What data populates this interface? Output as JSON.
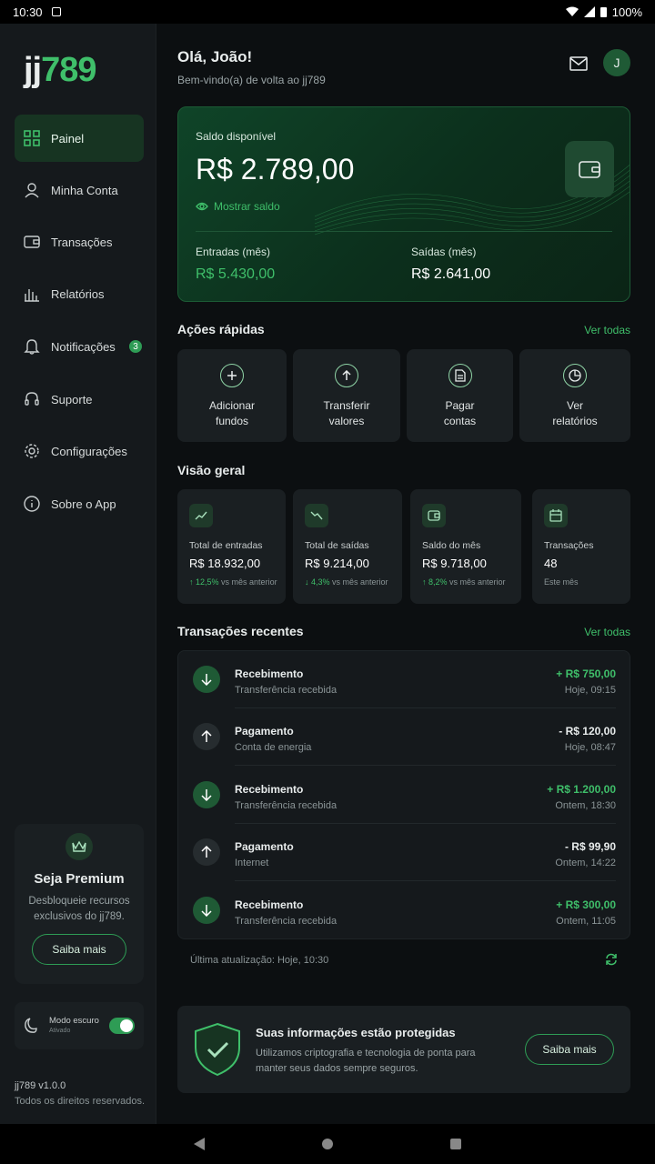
{
  "status": {
    "time": "10:30",
    "battery": "100%"
  },
  "sidebar": {
    "logo_a": "jj",
    "logo_b": "789",
    "items": [
      {
        "label": "Painel"
      },
      {
        "label": "Minha Conta"
      },
      {
        "label": "Transações"
      },
      {
        "label": "Relatórios"
      },
      {
        "label": "Notificações",
        "badge": "3"
      },
      {
        "label": "Suporte"
      },
      {
        "label": "Configurações"
      },
      {
        "label": "Sobre o App"
      }
    ],
    "premium": {
      "title": "Seja Premium",
      "text": "Desbloqueie recursos exclusivos do jj789.",
      "button": "Saiba mais"
    },
    "dark_mode": {
      "label": "Modo escuro",
      "sub": "Ativado",
      "on": true
    },
    "version": "jj789 v1.0.0",
    "rights": "Todos os direitos reservados."
  },
  "header": {
    "greeting": "Olá, João!",
    "subtitle": "Bem-vindo(a) de volta ao jj789",
    "avatar_letter": "J"
  },
  "balance": {
    "label": "Saldo disponível",
    "amount": "R$ 2.789,00",
    "show_label": "Mostrar saldo",
    "in_label": "Entradas (mês)",
    "in_value": "R$ 5.430,00",
    "out_label": "Saídas (mês)",
    "out_value": "R$ 2.641,00"
  },
  "quick_actions": {
    "title": "Ações rápidas",
    "see_all": "Ver todas",
    "items": [
      {
        "line1": "Adicionar",
        "line2": "fundos"
      },
      {
        "line1": "Transferir",
        "line2": "valores"
      },
      {
        "line1": "Pagar",
        "line2": "contas"
      },
      {
        "line1": "Ver",
        "line2": "relatórios"
      }
    ]
  },
  "overview": {
    "title": "Visão geral",
    "items": [
      {
        "label": "Total de entradas",
        "value": "R$ 18.932,00",
        "change": "↑ 12,5%",
        "note": "vs mês anterior"
      },
      {
        "label": "Total de saídas",
        "value": "R$ 9.214,00",
        "change": "↓ 4,3%",
        "note": "vs mês anterior"
      },
      {
        "label": "Saldo do mês",
        "value": "R$ 9.718,00",
        "change": "↑ 8,2%",
        "note": "vs mês anterior"
      },
      {
        "label": "Transações",
        "value": "48",
        "change": "",
        "note": "Este mês"
      }
    ]
  },
  "transactions": {
    "title": "Transações recentes",
    "see_all": "Ver todas",
    "rows": [
      {
        "name": "Recebimento",
        "desc": "Transferência recebida",
        "amount": "+ R$ 750,00",
        "time": "Hoje, 09:15",
        "type": "in"
      },
      {
        "name": "Pagamento",
        "desc": "Conta de energia",
        "amount": "- R$ 120,00",
        "time": "Hoje, 08:47",
        "type": "out"
      },
      {
        "name": "Recebimento",
        "desc": "Transferência recebida",
        "amount": "+ R$ 1.200,00",
        "time": "Ontem, 18:30",
        "type": "in"
      },
      {
        "name": "Pagamento",
        "desc": "Internet",
        "amount": "- R$ 99,90",
        "time": "Ontem, 14:22",
        "type": "out"
      },
      {
        "name": "Recebimento",
        "desc": "Transferência recebida",
        "amount": "+ R$ 300,00",
        "time": "Ontem, 11:05",
        "type": "in"
      }
    ],
    "updated": "Última atualização: Hoje, 10:30"
  },
  "security": {
    "title": "Suas informações estão protegidas",
    "text": "Utilizamos criptografia e tecnologia de ponta para manter seus dados sempre seguros.",
    "button": "Saiba mais"
  },
  "colors": {
    "accent": "#3fbf6a",
    "background": "#0c0f11",
    "card": "#1a1f22"
  }
}
